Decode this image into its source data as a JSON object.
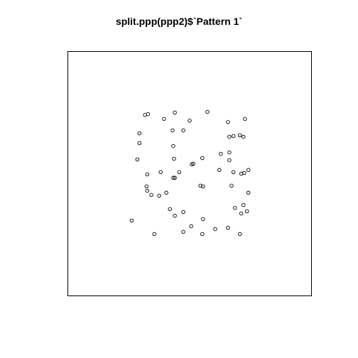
{
  "chart_data": {
    "type": "scatter",
    "title": "split.ppp(ppp2)$`Pattern 1`",
    "xlabel": "",
    "ylabel": "",
    "xlim": [
      0,
      1
    ],
    "ylim": [
      0,
      1
    ],
    "grid": false,
    "legend": "none",
    "marker": "open-circle",
    "colors": {
      "point": "#000000",
      "frame": "#000000",
      "background": "#ffffff"
    },
    "points": [
      {
        "x": 0.317,
        "y": 0.74
      },
      {
        "x": 0.329,
        "y": 0.744
      },
      {
        "x": 0.439,
        "y": 0.75
      },
      {
        "x": 0.573,
        "y": 0.753
      },
      {
        "x": 0.395,
        "y": 0.724
      },
      {
        "x": 0.5,
        "y": 0.717
      },
      {
        "x": 0.657,
        "y": 0.711
      },
      {
        "x": 0.727,
        "y": 0.724
      },
      {
        "x": 0.43,
        "y": 0.677
      },
      {
        "x": 0.474,
        "y": 0.677
      },
      {
        "x": 0.294,
        "y": 0.665
      },
      {
        "x": 0.663,
        "y": 0.651
      },
      {
        "x": 0.68,
        "y": 0.654
      },
      {
        "x": 0.706,
        "y": 0.657
      },
      {
        "x": 0.721,
        "y": 0.651
      },
      {
        "x": 0.294,
        "y": 0.625
      },
      {
        "x": 0.433,
        "y": 0.613
      },
      {
        "x": 0.628,
        "y": 0.581
      },
      {
        "x": 0.663,
        "y": 0.587
      },
      {
        "x": 0.285,
        "y": 0.558
      },
      {
        "x": 0.436,
        "y": 0.561
      },
      {
        "x": 0.552,
        "y": 0.564
      },
      {
        "x": 0.663,
        "y": 0.555
      },
      {
        "x": 0.509,
        "y": 0.538
      },
      {
        "x": 0.515,
        "y": 0.541
      },
      {
        "x": 0.381,
        "y": 0.506
      },
      {
        "x": 0.457,
        "y": 0.506
      },
      {
        "x": 0.622,
        "y": 0.515
      },
      {
        "x": 0.68,
        "y": 0.506
      },
      {
        "x": 0.712,
        "y": 0.5
      },
      {
        "x": 0.724,
        "y": 0.503
      },
      {
        "x": 0.741,
        "y": 0.515
      },
      {
        "x": 0.326,
        "y": 0.497
      },
      {
        "x": 0.433,
        "y": 0.483
      },
      {
        "x": 0.439,
        "y": 0.483
      },
      {
        "x": 0.672,
        "y": 0.451
      },
      {
        "x": 0.544,
        "y": 0.451
      },
      {
        "x": 0.555,
        "y": 0.448
      },
      {
        "x": 0.323,
        "y": 0.448
      },
      {
        "x": 0.326,
        "y": 0.43
      },
      {
        "x": 0.404,
        "y": 0.422
      },
      {
        "x": 0.343,
        "y": 0.413
      },
      {
        "x": 0.375,
        "y": 0.41
      },
      {
        "x": 0.741,
        "y": 0.422
      },
      {
        "x": 0.721,
        "y": 0.372
      },
      {
        "x": 0.686,
        "y": 0.36
      },
      {
        "x": 0.419,
        "y": 0.355
      },
      {
        "x": 0.474,
        "y": 0.343
      },
      {
        "x": 0.439,
        "y": 0.328
      },
      {
        "x": 0.735,
        "y": 0.346
      },
      {
        "x": 0.712,
        "y": 0.337
      },
      {
        "x": 0.262,
        "y": 0.308
      },
      {
        "x": 0.555,
        "y": 0.314
      },
      {
        "x": 0.506,
        "y": 0.285
      },
      {
        "x": 0.474,
        "y": 0.262
      },
      {
        "x": 0.605,
        "y": 0.273
      },
      {
        "x": 0.657,
        "y": 0.279
      },
      {
        "x": 0.355,
        "y": 0.253
      },
      {
        "x": 0.552,
        "y": 0.253
      },
      {
        "x": 0.706,
        "y": 0.253
      }
    ]
  }
}
